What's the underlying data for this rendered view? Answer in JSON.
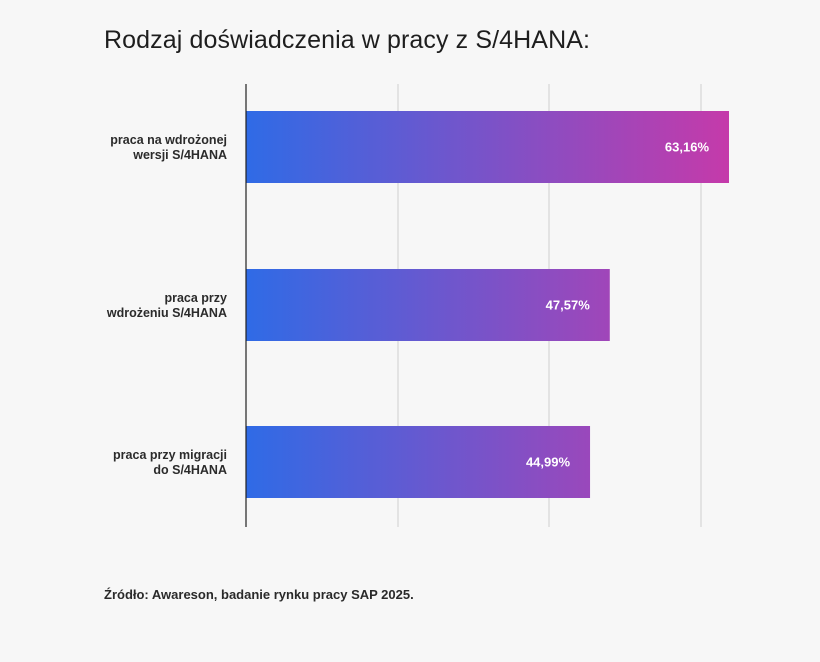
{
  "title": "Rodzaj doświadczenia w pracy z S/4HANA:",
  "source": "Źródło: Awareson, badanie rynku pracy SAP 2025.",
  "chart_data": {
    "type": "bar",
    "orientation": "horizontal",
    "title": "Rodzaj doświadczenia w pracy z S/4HANA:",
    "categories": [
      [
        "praca na wdrożonej",
        "wersji S/4HANA"
      ],
      [
        "praca przy",
        "wdrożeniu S/4HANA"
      ],
      [
        "praca przy migracji",
        "do S/4HANA"
      ]
    ],
    "values": [
      63.16,
      47.57,
      44.99
    ],
    "value_labels": [
      "63,16%",
      "47,57%",
      "44,99%"
    ],
    "xlim": [
      0,
      66
    ],
    "grid": true,
    "gradient": [
      "#2f6be6",
      "#c53aaa"
    ]
  }
}
